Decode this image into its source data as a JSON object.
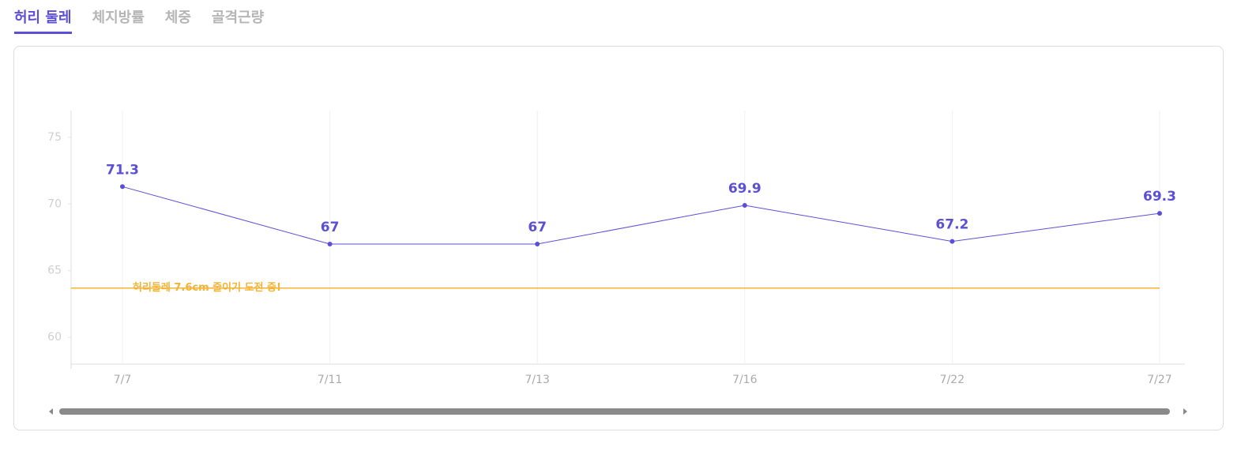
{
  "tabs": [
    "허리 둘레",
    "체지방률",
    "체중",
    "골격근량"
  ],
  "active_tab": 0,
  "chart_data": {
    "type": "line",
    "categories": [
      "7/7",
      "7/11",
      "7/13",
      "7/16",
      "7/22",
      "7/27"
    ],
    "series": [
      {
        "name": "허리 둘레",
        "color": "#5b4fd6",
        "values": [
          71.3,
          67,
          67,
          69.9,
          67.2,
          69.3
        ]
      }
    ],
    "ylim": [
      58,
      77
    ],
    "yticks": [
      60,
      65,
      70,
      75
    ],
    "grid": true,
    "target": {
      "value": 63.7,
      "label": "허리둘레 7.6cm 줄이기 도전 중!",
      "color": "#f5b335"
    }
  }
}
